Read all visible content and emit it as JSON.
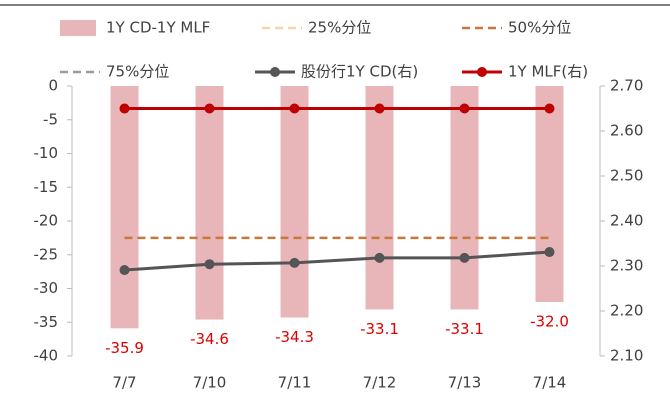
{
  "chart_data": {
    "type": "bar",
    "categories": [
      "7/7",
      "7/10",
      "7/11",
      "7/12",
      "7/13",
      "7/14"
    ],
    "ylim": [
      -40,
      0
    ],
    "yticks": [
      0,
      -5,
      -10,
      -15,
      -20,
      -25,
      -30,
      -35,
      -40
    ],
    "y2lim": [
      2.1,
      2.7
    ],
    "y2ticks": [
      {
        "value": 2.7,
        "label": "2.70"
      },
      {
        "value": 2.6,
        "label": "2.60"
      },
      {
        "value": 2.5,
        "label": "2.50"
      },
      {
        "value": 2.4,
        "label": "2.40"
      },
      {
        "value": 2.3,
        "label": "2.30"
      },
      {
        "value": 2.2,
        "label": "2.20"
      },
      {
        "value": 2.1,
        "label": "2.10"
      }
    ],
    "series": [
      {
        "name": "1Y CD-1Y MLF",
        "type": "bar",
        "color": "#e8b5b8",
        "values": [
          -35.9,
          -34.6,
          -34.3,
          -33.1,
          -33.1,
          -32.0
        ],
        "value_labels": [
          "-35.9",
          "-34.6",
          "-34.3",
          "-33.1",
          "-33.1",
          "-32.0"
        ],
        "label_color": "#e00000"
      },
      {
        "name": "25%分位",
        "type": "line",
        "style": "dashed",
        "color": "#f4d7a8",
        "values": [
          null,
          null,
          null,
          null,
          null,
          null
        ]
      },
      {
        "name": "50%分位",
        "type": "line",
        "style": "dashed",
        "color": "#c8783c",
        "values": [
          -22.5,
          -22.5,
          -22.5,
          -22.5,
          -22.5,
          -22.5
        ]
      },
      {
        "name": "75%分位",
        "type": "line",
        "style": "dashed",
        "color": "#999999",
        "values": [
          null,
          null,
          null,
          null,
          null,
          null
        ]
      },
      {
        "name": "股份行1Y CD(右)",
        "type": "line",
        "style": "marker",
        "axis": "y2",
        "color": "#555555",
        "values": [
          2.291,
          2.304,
          2.307,
          2.318,
          2.318,
          2.331
        ]
      },
      {
        "name": "1Y MLF(右)",
        "type": "line",
        "style": "marker",
        "axis": "y2",
        "color": "#c00000",
        "values": [
          2.65,
          2.65,
          2.65,
          2.65,
          2.65,
          2.65
        ]
      }
    ]
  }
}
